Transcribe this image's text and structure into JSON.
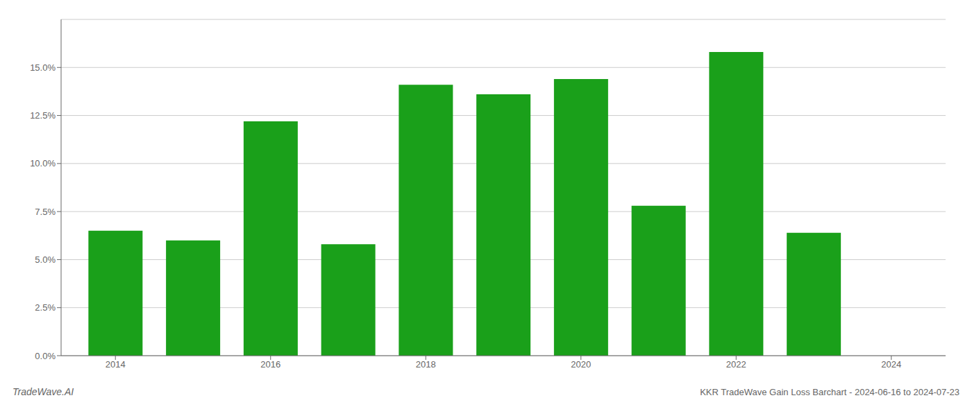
{
  "chart_data": {
    "type": "bar",
    "x": [
      2014,
      2015,
      2016,
      2017,
      2018,
      2019,
      2020,
      2021,
      2022,
      2023
    ],
    "values": [
      0.065,
      0.06,
      0.122,
      0.058,
      0.141,
      0.136,
      0.144,
      0.078,
      0.158,
      0.064
    ],
    "color": "#1aa01a",
    "xlim": [
      2013.3,
      2024.7
    ],
    "xticks": [
      2014,
      2016,
      2018,
      2020,
      2022,
      2024
    ],
    "ylim": [
      0,
      0.175
    ],
    "yticks": [
      {
        "value": 0.0,
        "label": "0.0%"
      },
      {
        "value": 0.025,
        "label": "2.5%"
      },
      {
        "value": 0.05,
        "label": "5.0%"
      },
      {
        "value": 0.075,
        "label": "7.5%"
      },
      {
        "value": 0.1,
        "label": "10.0%"
      },
      {
        "value": 0.125,
        "label": "12.5%"
      },
      {
        "value": 0.15,
        "label": "15.0%"
      }
    ],
    "grid": true,
    "annotations": [
      "TradeWave.AI",
      "KKR TradeWave Gain Loss Barchart - 2024-06-16 to 2024-07-23"
    ]
  }
}
